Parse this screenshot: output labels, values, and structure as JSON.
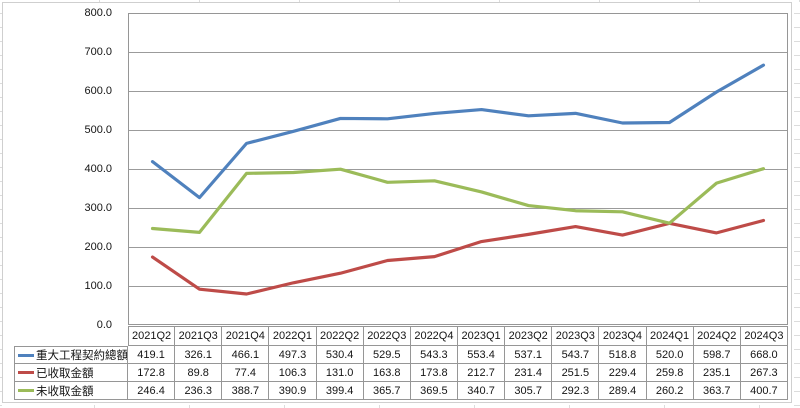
{
  "chart_data": {
    "type": "line",
    "title": "",
    "categories": [
      "2021Q2",
      "2021Q3",
      "2021Q4",
      "2022Q1",
      "2022Q2",
      "2022Q3",
      "2022Q4",
      "2023Q1",
      "2023Q2",
      "2023Q3",
      "2023Q4",
      "2024Q1",
      "2024Q2",
      "2024Q3"
    ],
    "series": [
      {
        "id": "total-contract",
        "name": "重大工程契約總額",
        "color": "#4F81BD",
        "values": [
          419.1,
          326.1,
          466.1,
          497.3,
          530.4,
          529.5,
          543.3,
          553.4,
          537.1,
          543.7,
          518.8,
          520.0,
          598.7,
          668.0
        ]
      },
      {
        "id": "received",
        "name": "已收取金額",
        "color": "#BE4B48",
        "values": [
          172.8,
          89.8,
          77.4,
          106.3,
          131.0,
          163.8,
          173.8,
          212.7,
          231.4,
          251.5,
          229.4,
          259.8,
          235.1,
          267.3
        ]
      },
      {
        "id": "unreceived",
        "name": "未收取金額",
        "color": "#9BBB59",
        "values": [
          246.4,
          236.3,
          388.7,
          390.9,
          399.4,
          365.7,
          369.5,
          340.7,
          305.7,
          292.3,
          289.4,
          260.2,
          363.7,
          400.7
        ]
      }
    ],
    "ylim": [
      0,
      800
    ],
    "ytick_step": 100,
    "yticks": [
      "800.0",
      "700.0",
      "600.0",
      "500.0",
      "400.0",
      "300.0",
      "200.0",
      "100.0",
      "0.0"
    ],
    "grid": "horizontal",
    "legend_position": "data-table-left",
    "colors": {
      "grid": "#969696",
      "axis_text": "#141414",
      "plot_background": "#ffffff"
    }
  }
}
